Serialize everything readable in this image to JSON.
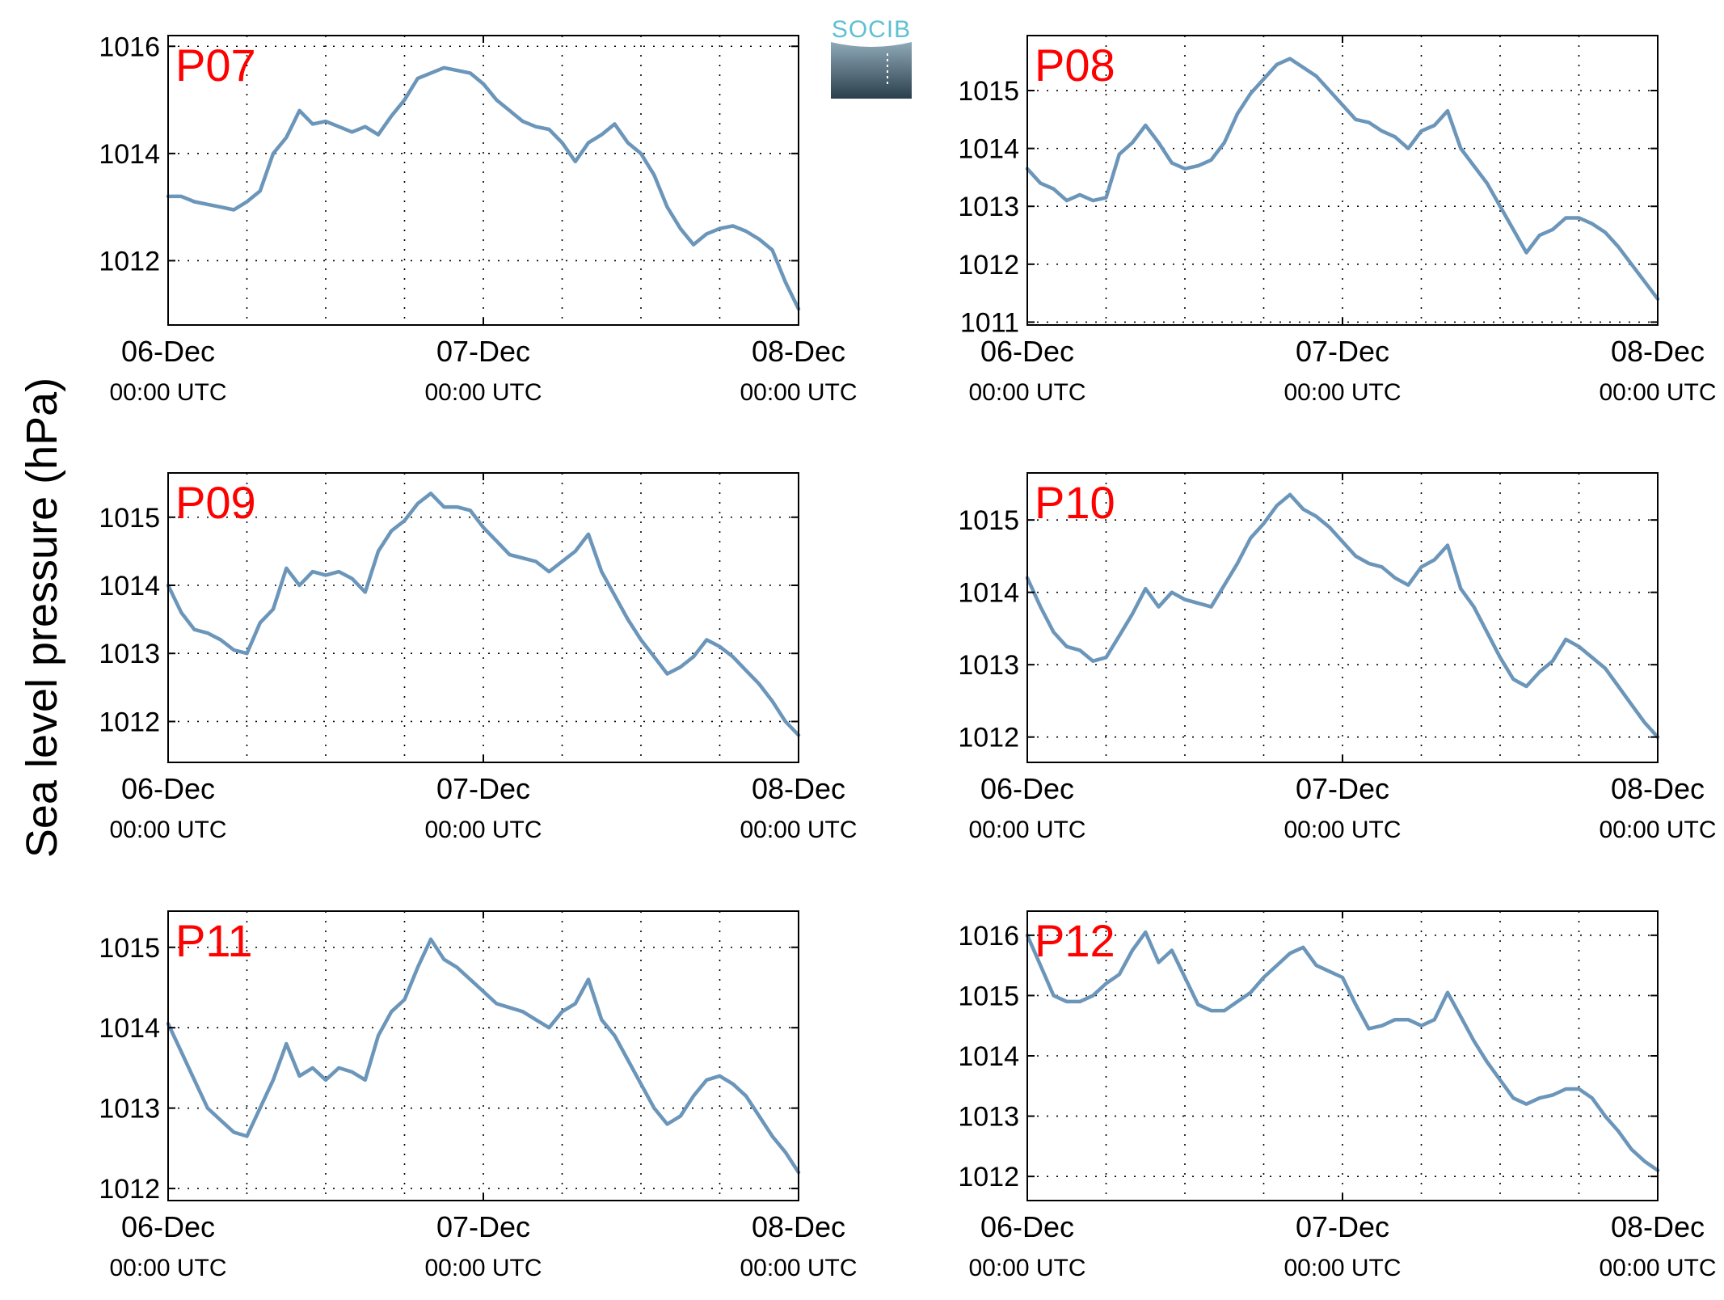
{
  "figure": {
    "ylabel": "Sea level pressure (hPa)",
    "logo_text": "SOCIB",
    "colors": {
      "line": "#6b96ba",
      "station_label": "#ff0000",
      "axes": "#000000",
      "logo_top": "#5fc0d2",
      "logo_bottom": "#2b3f4c"
    }
  },
  "chart_data": [
    {
      "type": "line",
      "title": "P07",
      "grid": true,
      "x_ticks": [
        {
          "date": "06-Dec",
          "time": "00:00 UTC"
        },
        {
          "date": "07-Dec",
          "time": "00:00 UTC"
        },
        {
          "date": "08-Dec",
          "time": "00:00 UTC"
        }
      ],
      "xlim": [
        "2018-12-06T00:00Z",
        "2018-12-08T00:00Z"
      ],
      "ylim": [
        1010.8,
        1016.2
      ],
      "yticks": [
        1012,
        1014,
        1016
      ],
      "series": [
        {
          "x_hours": [
            0,
            1,
            2,
            3,
            4,
            5,
            6,
            7,
            8,
            9,
            10,
            11,
            12,
            13,
            14,
            15,
            16,
            17,
            18,
            19,
            20,
            21,
            22,
            23,
            24,
            25,
            26,
            27,
            28,
            29,
            30,
            31,
            32,
            33,
            34,
            35,
            36,
            37,
            38,
            39,
            40,
            41,
            42,
            43,
            44,
            45,
            46,
            47,
            48
          ],
          "values": [
            1013.2,
            1013.2,
            1013.1,
            1013.05,
            1013.0,
            1012.95,
            1013.1,
            1013.3,
            1014.0,
            1014.3,
            1014.8,
            1014.55,
            1014.6,
            1014.5,
            1014.4,
            1014.5,
            1014.35,
            1014.7,
            1015.0,
            1015.4,
            1015.5,
            1015.6,
            1015.55,
            1015.5,
            1015.3,
            1015.0,
            1014.8,
            1014.6,
            1014.5,
            1014.45,
            1014.2,
            1013.85,
            1014.2,
            1014.35,
            1014.55,
            1014.2,
            1014.0,
            1013.6,
            1013.0,
            1012.6,
            1012.3,
            1012.5,
            1012.6,
            1012.65,
            1012.55,
            1012.4,
            1012.2,
            1011.6,
            1011.1
          ]
        }
      ]
    },
    {
      "type": "line",
      "title": "P08",
      "grid": true,
      "x_ticks": [
        {
          "date": "06-Dec",
          "time": "00:00 UTC"
        },
        {
          "date": "07-Dec",
          "time": "00:00 UTC"
        },
        {
          "date": "08-Dec",
          "time": "00:00 UTC"
        }
      ],
      "xlim": [
        "2018-12-06T00:00Z",
        "2018-12-08T00:00Z"
      ],
      "ylim": [
        1010.95,
        1015.95
      ],
      "yticks": [
        1011,
        1012,
        1013,
        1014,
        1015
      ],
      "series": [
        {
          "x_hours": [
            0,
            1,
            2,
            3,
            4,
            5,
            6,
            7,
            8,
            9,
            10,
            11,
            12,
            13,
            14,
            15,
            16,
            17,
            18,
            19,
            20,
            21,
            22,
            23,
            24,
            25,
            26,
            27,
            28,
            29,
            30,
            31,
            32,
            33,
            34,
            35,
            36,
            37,
            38,
            39,
            40,
            41,
            42,
            43,
            44,
            45,
            46,
            47,
            48
          ],
          "values": [
            1013.65,
            1013.4,
            1013.3,
            1013.1,
            1013.2,
            1013.1,
            1013.15,
            1013.9,
            1014.1,
            1014.4,
            1014.1,
            1013.75,
            1013.65,
            1013.7,
            1013.8,
            1014.1,
            1014.6,
            1014.95,
            1015.2,
            1015.45,
            1015.55,
            1015.4,
            1015.25,
            1015.0,
            1014.75,
            1014.5,
            1014.45,
            1014.3,
            1014.2,
            1014.0,
            1014.3,
            1014.4,
            1014.65,
            1014.0,
            1013.7,
            1013.4,
            1013.0,
            1012.6,
            1012.2,
            1012.5,
            1012.6,
            1012.8,
            1012.8,
            1012.7,
            1012.55,
            1012.3,
            1012.0,
            1011.7,
            1011.4
          ]
        }
      ]
    },
    {
      "type": "line",
      "title": "P09",
      "grid": true,
      "x_ticks": [
        {
          "date": "06-Dec",
          "time": "00:00 UTC"
        },
        {
          "date": "07-Dec",
          "time": "00:00 UTC"
        },
        {
          "date": "08-Dec",
          "time": "00:00 UTC"
        }
      ],
      "xlim": [
        "2018-12-06T00:00Z",
        "2018-12-08T00:00Z"
      ],
      "ylim": [
        1011.4,
        1015.65
      ],
      "yticks": [
        1012,
        1013,
        1014,
        1015
      ],
      "series": [
        {
          "x_hours": [
            0,
            1,
            2,
            3,
            4,
            5,
            6,
            7,
            8,
            9,
            10,
            11,
            12,
            13,
            14,
            15,
            16,
            17,
            18,
            19,
            20,
            21,
            22,
            23,
            24,
            25,
            26,
            27,
            28,
            29,
            30,
            31,
            32,
            33,
            34,
            35,
            36,
            37,
            38,
            39,
            40,
            41,
            42,
            43,
            44,
            45,
            46,
            47,
            48
          ],
          "values": [
            1014.0,
            1013.6,
            1013.35,
            1013.3,
            1013.2,
            1013.05,
            1013.0,
            1013.45,
            1013.65,
            1014.25,
            1014.0,
            1014.2,
            1014.15,
            1014.2,
            1014.1,
            1013.9,
            1014.5,
            1014.8,
            1014.95,
            1015.2,
            1015.35,
            1015.15,
            1015.15,
            1015.1,
            1014.85,
            1014.65,
            1014.45,
            1014.4,
            1014.35,
            1014.2,
            1014.35,
            1014.5,
            1014.75,
            1014.2,
            1013.85,
            1013.5,
            1013.2,
            1012.95,
            1012.7,
            1012.8,
            1012.95,
            1013.2,
            1013.1,
            1012.95,
            1012.75,
            1012.55,
            1012.3,
            1012.0,
            1011.8
          ]
        }
      ]
    },
    {
      "type": "line",
      "title": "P10",
      "grid": true,
      "x_ticks": [
        {
          "date": "06-Dec",
          "time": "00:00 UTC"
        },
        {
          "date": "07-Dec",
          "time": "00:00 UTC"
        },
        {
          "date": "08-Dec",
          "time": "00:00 UTC"
        }
      ],
      "xlim": [
        "2018-12-06T00:00Z",
        "2018-12-08T00:00Z"
      ],
      "ylim": [
        1011.65,
        1015.65
      ],
      "yticks": [
        1012,
        1013,
        1014,
        1015
      ],
      "series": [
        {
          "x_hours": [
            0,
            1,
            2,
            3,
            4,
            5,
            6,
            7,
            8,
            9,
            10,
            11,
            12,
            13,
            14,
            15,
            16,
            17,
            18,
            19,
            20,
            21,
            22,
            23,
            24,
            25,
            26,
            27,
            28,
            29,
            30,
            31,
            32,
            33,
            34,
            35,
            36,
            37,
            38,
            39,
            40,
            41,
            42,
            43,
            44,
            45,
            46,
            47,
            48
          ],
          "values": [
            1014.2,
            1013.8,
            1013.45,
            1013.25,
            1013.2,
            1013.05,
            1013.1,
            1013.4,
            1013.7,
            1014.05,
            1013.8,
            1014.0,
            1013.9,
            1013.85,
            1013.8,
            1014.1,
            1014.4,
            1014.75,
            1014.95,
            1015.2,
            1015.35,
            1015.15,
            1015.05,
            1014.9,
            1014.7,
            1014.5,
            1014.4,
            1014.35,
            1014.2,
            1014.1,
            1014.35,
            1014.45,
            1014.65,
            1014.05,
            1013.8,
            1013.45,
            1013.1,
            1012.8,
            1012.7,
            1012.9,
            1013.05,
            1013.35,
            1013.25,
            1013.1,
            1012.95,
            1012.7,
            1012.45,
            1012.2,
            1012.0
          ]
        }
      ]
    },
    {
      "type": "line",
      "title": "P11",
      "grid": true,
      "x_ticks": [
        {
          "date": "06-Dec",
          "time": "00:00 UTC"
        },
        {
          "date": "07-Dec",
          "time": "00:00 UTC"
        },
        {
          "date": "08-Dec",
          "time": "00:00 UTC"
        }
      ],
      "xlim": [
        "2018-12-06T00:00Z",
        "2018-12-08T00:00Z"
      ],
      "ylim": [
        1011.85,
        1015.45
      ],
      "yticks": [
        1012,
        1013,
        1014,
        1015
      ],
      "series": [
        {
          "x_hours": [
            0,
            1,
            2,
            3,
            4,
            5,
            6,
            7,
            8,
            9,
            10,
            11,
            12,
            13,
            14,
            15,
            16,
            17,
            18,
            19,
            20,
            21,
            22,
            23,
            24,
            25,
            26,
            27,
            28,
            29,
            30,
            31,
            32,
            33,
            34,
            35,
            36,
            37,
            38,
            39,
            40,
            41,
            42,
            43,
            44,
            45,
            46,
            47,
            48
          ],
          "values": [
            1014.05,
            1013.7,
            1013.35,
            1013.0,
            1012.85,
            1012.7,
            1012.65,
            1013.0,
            1013.35,
            1013.8,
            1013.4,
            1013.5,
            1013.35,
            1013.5,
            1013.45,
            1013.35,
            1013.9,
            1014.2,
            1014.35,
            1014.75,
            1015.1,
            1014.85,
            1014.75,
            1014.6,
            1014.45,
            1014.3,
            1014.25,
            1014.2,
            1014.1,
            1014.0,
            1014.2,
            1014.3,
            1014.6,
            1014.1,
            1013.9,
            1013.6,
            1013.3,
            1013.0,
            1012.8,
            1012.9,
            1013.15,
            1013.35,
            1013.4,
            1013.3,
            1013.15,
            1012.9,
            1012.65,
            1012.45,
            1012.2
          ]
        }
      ]
    },
    {
      "type": "line",
      "title": "P12",
      "grid": true,
      "x_ticks": [
        {
          "date": "06-Dec",
          "time": "00:00 UTC"
        },
        {
          "date": "07-Dec",
          "time": "00:00 UTC"
        },
        {
          "date": "08-Dec",
          "time": "00:00 UTC"
        }
      ],
      "xlim": [
        "2018-12-06T00:00Z",
        "2018-12-08T00:00Z"
      ],
      "ylim": [
        1011.6,
        1016.4
      ],
      "yticks": [
        1012,
        1013,
        1014,
        1015,
        1016
      ],
      "series": [
        {
          "x_hours": [
            0,
            1,
            2,
            3,
            4,
            5,
            6,
            7,
            8,
            9,
            10,
            11,
            12,
            13,
            14,
            15,
            16,
            17,
            18,
            19,
            20,
            21,
            22,
            23,
            24,
            25,
            26,
            27,
            28,
            29,
            30,
            31,
            32,
            33,
            34,
            35,
            36,
            37,
            38,
            39,
            40,
            41,
            42,
            43,
            44,
            45,
            46,
            47,
            48
          ],
          "values": [
            1016.0,
            1015.5,
            1015.0,
            1014.9,
            1014.9,
            1015.0,
            1015.2,
            1015.35,
            1015.75,
            1016.05,
            1015.55,
            1015.75,
            1015.3,
            1014.85,
            1014.75,
            1014.75,
            1014.9,
            1015.05,
            1015.3,
            1015.5,
            1015.7,
            1015.8,
            1015.5,
            1015.4,
            1015.3,
            1014.85,
            1014.45,
            1014.5,
            1014.6,
            1014.6,
            1014.5,
            1014.6,
            1015.05,
            1014.65,
            1014.25,
            1013.9,
            1013.6,
            1013.3,
            1013.2,
            1013.3,
            1013.35,
            1013.45,
            1013.45,
            1013.3,
            1013.0,
            1012.75,
            1012.45,
            1012.25,
            1012.1
          ]
        }
      ]
    }
  ]
}
